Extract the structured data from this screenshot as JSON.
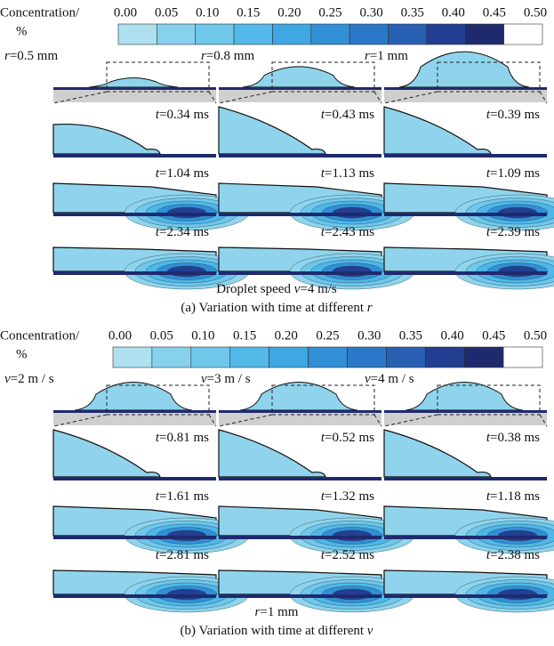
{
  "panels": [
    {
      "colorbar": {
        "label": "Concentration/",
        "unit": "%",
        "ticks": [
          "0.00",
          "0.05",
          "0.10",
          "0.15",
          "0.20",
          "0.25",
          "0.30",
          "0.35",
          "0.40",
          "0.45",
          "0.50"
        ]
      },
      "columns": [
        {
          "variable": "r",
          "value": "=0.5 mm",
          "times": [
            {
              "variable": "t",
              "value": "=0.34 ms"
            },
            {
              "variable": "t",
              "value": "=1.04 ms"
            },
            {
              "variable": "t",
              "value": "=2.34 ms"
            }
          ]
        },
        {
          "variable": "r",
          "value": "=0.8 mm",
          "times": [
            {
              "variable": "t",
              "value": "=0.43 ms"
            },
            {
              "variable": "t",
              "value": "=1.13 ms"
            },
            {
              "variable": "t",
              "value": "=2.43 ms"
            }
          ]
        },
        {
          "variable": "r",
          "value": "=1 mm",
          "times": [
            {
              "variable": "t",
              "value": "=0.39 ms"
            },
            {
              "variable": "t",
              "value": "=1.09 ms"
            },
            {
              "variable": "t",
              "value": "=2.39 ms"
            }
          ]
        }
      ],
      "condition": {
        "prefix": "Droplet speed ",
        "variable": "v",
        "value": "=4 m/s"
      },
      "caption": {
        "prefix": "(a) Variation with time at different ",
        "variable": "r"
      }
    },
    {
      "colorbar": {
        "label": "Concentration/",
        "unit": "%",
        "ticks": [
          "0.00",
          "0.05",
          "0.10",
          "0.15",
          "0.20",
          "0.25",
          "0.30",
          "0.35",
          "0.40",
          "0.45",
          "0.50"
        ]
      },
      "columns": [
        {
          "variable": "v",
          "value": "=2 m / s",
          "times": [
            {
              "variable": "t",
              "value": "=0.81 ms"
            },
            {
              "variable": "t",
              "value": "=1.61 ms"
            },
            {
              "variable": "t",
              "value": "=2.81 ms"
            }
          ]
        },
        {
          "variable": "v",
          "value": "=3 m / s",
          "times": [
            {
              "variable": "t",
              "value": "=0.52 ms"
            },
            {
              "variable": "t",
              "value": "=1.32 ms"
            },
            {
              "variable": "t",
              "value": "=2.52 ms"
            }
          ]
        },
        {
          "variable": "v",
          "value": "=4 m / s",
          "times": [
            {
              "variable": "t",
              "value": "=0.38 ms"
            },
            {
              "variable": "t",
              "value": "=1.18 ms"
            },
            {
              "variable": "t",
              "value": "=2.38 ms"
            }
          ]
        }
      ],
      "condition": {
        "prefix": "",
        "variable": "r",
        "value": "=1 mm"
      },
      "caption": {
        "prefix": "(b) Variation with time at different ",
        "variable": "v"
      }
    }
  ]
}
